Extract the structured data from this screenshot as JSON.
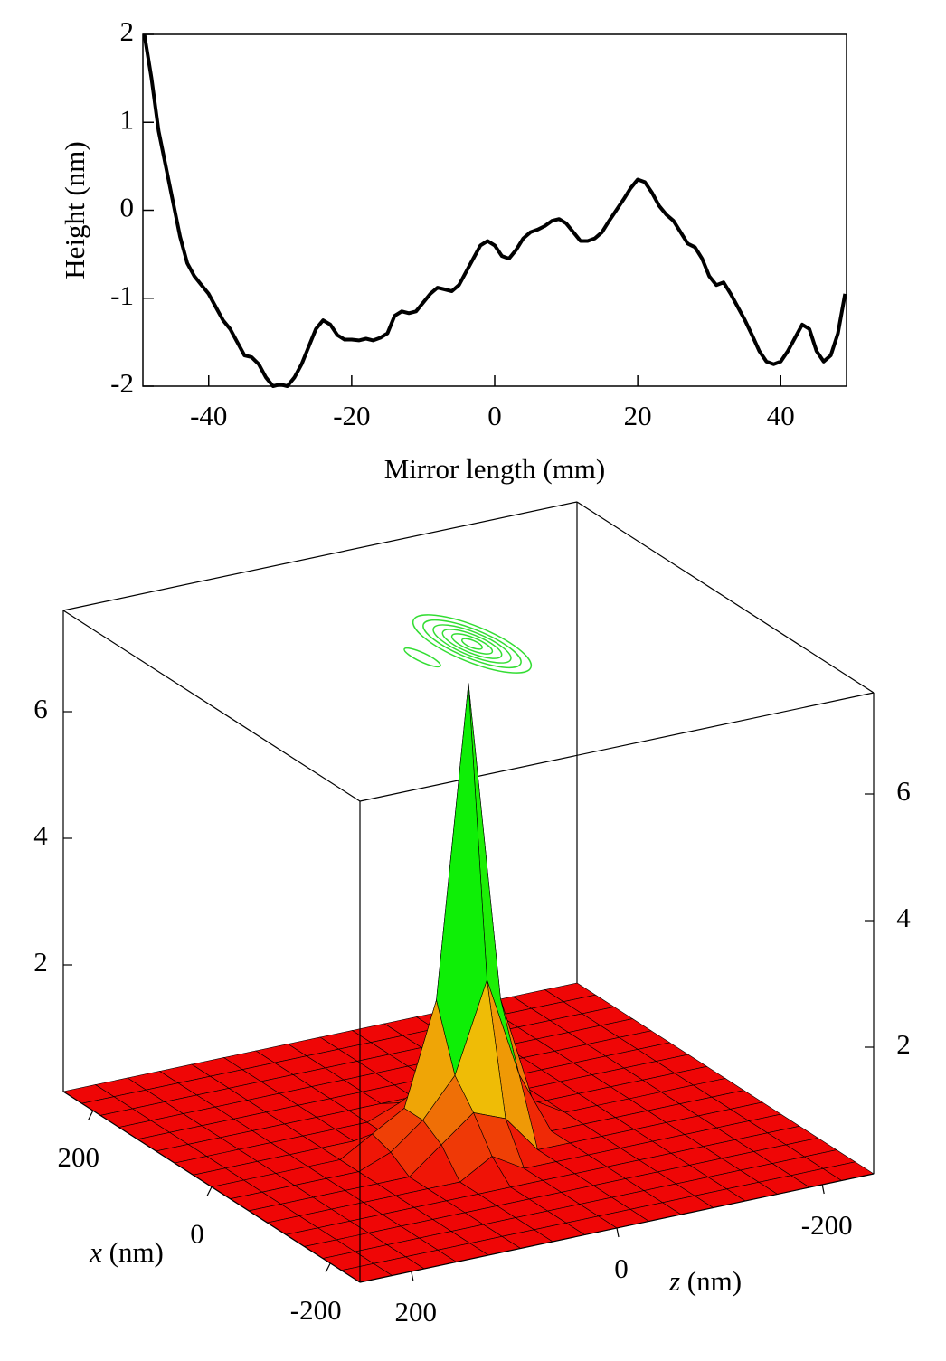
{
  "chart_data": [
    {
      "type": "line",
      "x_label": "Mirror length (mm)",
      "y_label": "Height (nm)",
      "xlim": [
        -49.2,
        49.2
      ],
      "ylim": [
        -2,
        2
      ],
      "xticks": [
        -40,
        -20,
        0,
        20,
        40
      ],
      "yticks": [
        -2,
        -1,
        0,
        1,
        2
      ],
      "series": [
        {
          "color": "#000000",
          "x": [
            -49,
            -48,
            -47,
            -46,
            -45,
            -44,
            -43,
            -42,
            -41,
            -40,
            -39,
            -38,
            -37,
            -36,
            -35,
            -34,
            -33,
            -32,
            -31,
            -30,
            -29,
            -28,
            -27,
            -26,
            -25,
            -24,
            -23,
            -22,
            -21,
            -20,
            -19,
            -18,
            -17,
            -16,
            -15,
            -14,
            -13,
            -12,
            -11,
            -10,
            -9,
            -8,
            -7,
            -6,
            -5,
            -4,
            -3,
            -2,
            -1,
            0,
            1,
            2,
            3,
            4,
            5,
            6,
            7,
            8,
            9,
            10,
            11,
            12,
            13,
            14,
            15,
            16,
            17,
            18,
            19,
            20,
            21,
            22,
            23,
            24,
            25,
            26,
            27,
            28,
            29,
            30,
            31,
            32,
            33,
            34,
            35,
            36,
            37,
            38,
            39,
            40,
            41,
            42,
            43,
            44,
            45,
            46,
            47,
            48,
            49
          ],
          "values": [
            2.0,
            1.5,
            0.9,
            0.5,
            0.1,
            -0.3,
            -0.6,
            -0.75,
            -0.85,
            -0.95,
            -1.1,
            -1.25,
            -1.35,
            -1.5,
            -1.65,
            -1.67,
            -1.75,
            -1.9,
            -2.0,
            -1.98,
            -2.0,
            -1.9,
            -1.75,
            -1.55,
            -1.35,
            -1.25,
            -1.3,
            -1.42,
            -1.47,
            -1.47,
            -1.48,
            -1.46,
            -1.48,
            -1.45,
            -1.4,
            -1.2,
            -1.15,
            -1.17,
            -1.15,
            -1.05,
            -0.95,
            -0.88,
            -0.9,
            -0.92,
            -0.85,
            -0.7,
            -0.55,
            -0.4,
            -0.35,
            -0.4,
            -0.52,
            -0.55,
            -0.45,
            -0.32,
            -0.25,
            -0.22,
            -0.18,
            -0.12,
            -0.1,
            -0.15,
            -0.25,
            -0.35,
            -0.35,
            -0.32,
            -0.25,
            -0.12,
            0.0,
            0.12,
            0.25,
            0.35,
            0.32,
            0.2,
            0.05,
            -0.05,
            -0.12,
            -0.25,
            -0.38,
            -0.42,
            -0.55,
            -0.75,
            -0.85,
            -0.82,
            -0.95,
            -1.1,
            -1.25,
            -1.42,
            -1.6,
            -1.72,
            -1.75,
            -1.72,
            -1.6,
            -1.45,
            -1.3,
            -1.35,
            -1.6,
            -1.72,
            -1.65,
            -1.4,
            -0.95
          ]
        }
      ]
    },
    {
      "type": "surface",
      "x_label": "x",
      "x_unit": "(nm)",
      "z_label": "z",
      "z_unit": "(nm)",
      "xlim": [
        -250,
        250
      ],
      "zlim": [
        -250,
        250
      ],
      "hlim": [
        0,
        7.6
      ],
      "xticks": [
        -200,
        0,
        200
      ],
      "zticks": [
        -200,
        0,
        200
      ],
      "hticks": [
        2,
        4,
        6
      ],
      "x": [
        -250,
        -218.75,
        -187.5,
        -156.25,
        -125,
        -93.75,
        -62.5,
        -31.25,
        0,
        31.25,
        62.5,
        93.75,
        125,
        156.25,
        187.5,
        218.75,
        250
      ],
      "z": [
        -250,
        -218.75,
        -187.5,
        -156.25,
        -125,
        -93.75,
        -62.5,
        -31.25,
        0,
        31.25,
        62.5,
        93.75,
        125,
        156.25,
        187.5,
        218.75,
        250
      ],
      "values": [
        [
          0,
          0,
          0,
          0,
          0,
          0,
          0,
          0,
          0,
          0,
          0,
          0,
          0,
          0,
          0,
          0,
          0
        ],
        [
          0,
          0,
          0,
          0,
          0,
          0,
          0,
          0,
          0,
          0,
          0,
          0,
          0,
          0,
          0,
          0,
          0
        ],
        [
          0,
          0,
          0,
          0,
          0,
          0,
          0,
          0,
          0,
          0,
          0,
          0,
          0,
          0,
          0,
          0,
          0
        ],
        [
          0,
          0,
          0,
          0,
          0,
          0,
          0,
          0,
          0,
          0,
          0,
          0,
          0,
          0,
          0,
          0,
          0
        ],
        [
          0,
          0,
          0,
          0,
          0,
          0,
          0,
          0,
          0,
          0,
          0,
          0,
          0,
          0,
          0,
          0,
          0
        ],
        [
          0,
          0,
          0,
          0,
          0,
          0,
          0,
          0,
          0,
          0.3,
          0,
          0,
          0,
          0,
          0,
          0,
          0
        ],
        [
          0,
          0,
          0,
          0,
          0,
          0,
          0,
          0,
          0.6,
          0.8,
          0.4,
          0,
          0,
          0,
          0,
          0,
          0
        ],
        [
          0,
          0,
          0,
          0,
          0,
          0,
          0,
          1.0,
          2.6,
          1.2,
          0.6,
          0.2,
          0,
          0,
          0,
          0,
          0
        ],
        [
          0,
          0,
          0,
          0,
          0,
          0,
          0.3,
          2.0,
          7.1,
          2.2,
          0.6,
          0.3,
          0,
          0,
          0,
          0,
          0
        ],
        [
          0,
          0,
          0,
          0,
          0,
          0,
          0,
          0.6,
          1.8,
          0.6,
          0,
          0,
          0,
          0,
          0,
          0,
          0
        ],
        [
          0,
          0,
          0,
          0,
          0,
          0,
          0,
          0,
          0.3,
          0.2,
          0,
          0,
          0,
          0,
          0,
          0,
          0
        ],
        [
          0,
          0,
          0,
          0,
          0,
          0,
          0,
          0,
          0,
          0,
          0,
          0,
          0,
          0,
          0,
          0,
          0
        ],
        [
          0,
          0,
          0,
          0,
          0,
          0,
          0,
          0,
          0,
          0,
          0,
          0,
          0,
          0,
          0,
          0,
          0
        ],
        [
          0,
          0,
          0,
          0,
          0,
          0,
          0,
          0,
          0,
          0,
          0,
          0,
          0,
          0,
          0,
          0,
          0
        ],
        [
          0,
          0,
          0,
          0,
          0,
          0,
          0,
          0,
          0,
          0,
          0,
          0,
          0,
          0,
          0,
          0,
          0
        ],
        [
          0,
          0,
          0,
          0,
          0,
          0,
          0,
          0,
          0,
          0,
          0,
          0,
          0,
          0,
          0,
          0,
          0
        ],
        [
          0,
          0,
          0,
          0,
          0,
          0,
          0,
          0,
          0,
          0,
          0,
          0,
          0,
          0,
          0,
          0,
          0
        ]
      ]
    }
  ]
}
